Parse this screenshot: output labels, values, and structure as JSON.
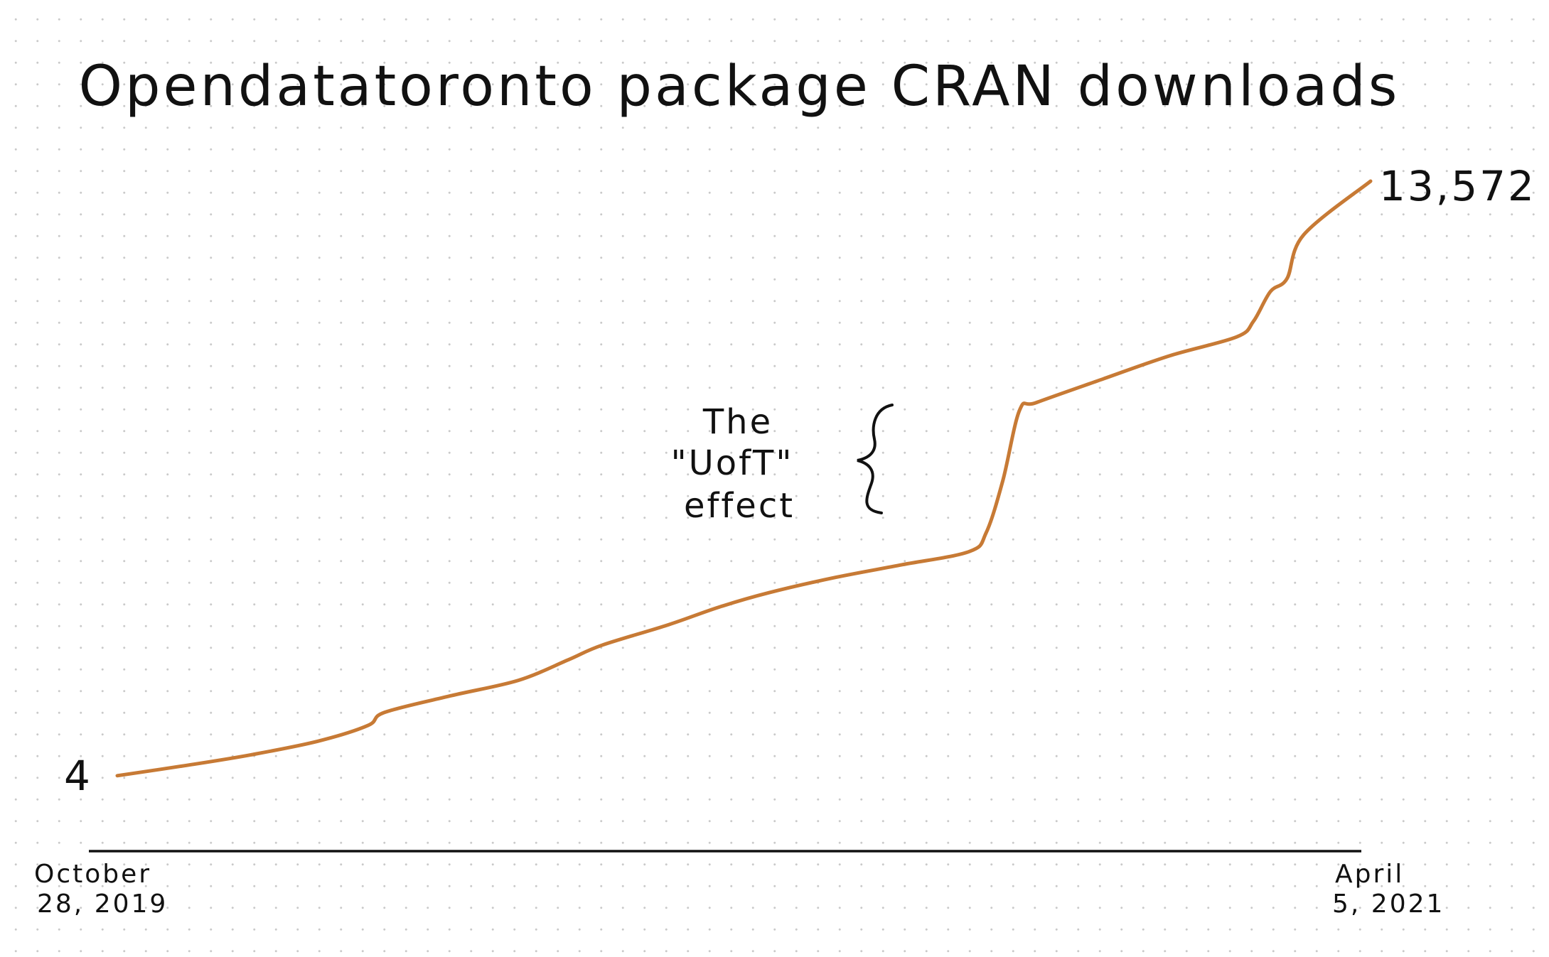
{
  "chart_data": {
    "type": "line",
    "title": "Opendatatoronto package CRAN downloads",
    "xlabel": "",
    "ylabel": "",
    "x_start_label": [
      "October",
      "28, 2019"
    ],
    "x_end_label": [
      "April",
      "5, 2021"
    ],
    "start_value_label": "4",
    "end_value_label": "13,572",
    "annotation": [
      "The",
      "\"UofT\"",
      "effect"
    ],
    "ylim": [
      0,
      13572
    ],
    "grid": false,
    "line_color": "#c77a35",
    "series": [
      {
        "x": [
          "2019-10-28",
          "2019-11-25",
          "2019-12-23",
          "2020-01-20",
          "2020-02-10",
          "2020-02-17",
          "2020-03-16",
          "2020-04-13",
          "2020-05-04",
          "2020-05-18",
          "2020-06-15",
          "2020-07-06",
          "2020-07-27",
          "2020-08-24",
          "2020-09-21",
          "2020-10-19",
          "2020-10-26",
          "2020-11-02",
          "2020-11-09",
          "2020-11-16",
          "2020-12-14",
          "2021-01-11",
          "2021-02-08",
          "2021-02-15",
          "2021-02-22",
          "2021-03-01",
          "2021-03-08",
          "2021-04-05"
        ],
        "values": [
          4,
          230,
          480,
          790,
          1150,
          1450,
          1830,
          2180,
          2650,
          2980,
          3450,
          3850,
          4180,
          4530,
          4820,
          5120,
          5550,
          6750,
          8350,
          8520,
          9060,
          9590,
          10020,
          10380,
          11050,
          11350,
          12350,
          13572
        ]
      }
    ]
  }
}
